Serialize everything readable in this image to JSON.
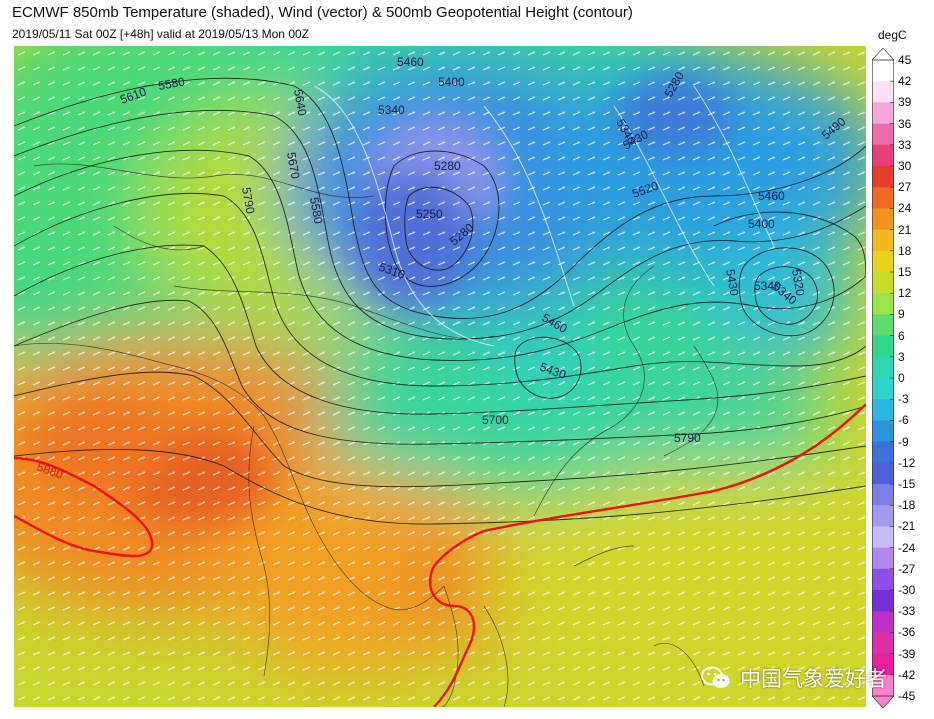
{
  "header": {
    "title": "ECMWF 850mb Temperature (shaded), Wind (vector) & 500mb Geopotential Height (contour)",
    "subtitle": "2019/05/11 Sat 00Z [+48h] valid at 2019/05/13 Mon 00Z"
  },
  "colorbar": {
    "unit": "degC",
    "ticks": [
      45,
      42,
      39,
      36,
      33,
      30,
      27,
      24,
      21,
      18,
      15,
      12,
      9,
      6,
      3,
      0,
      -3,
      -6,
      -9,
      -12,
      -15,
      -18,
      -21,
      -24,
      -27,
      -30,
      -33,
      -36,
      -39,
      -42,
      -45
    ],
    "tick_labels": [
      "45",
      "42",
      "39",
      "36",
      "33",
      "30",
      "27",
      "24",
      "21",
      "18",
      "15",
      "12",
      "9",
      "6",
      "3",
      "0",
      "-3",
      "-6",
      "-9",
      "-12",
      "-15",
      "-18",
      "-21",
      "-24",
      "-27",
      "-30",
      "-33",
      "-36",
      "-39",
      "-42",
      "-45"
    ],
    "colors": [
      "#ffffff",
      "#fde0f4",
      "#f6a6d8",
      "#ef6aa8",
      "#e8407a",
      "#e63c2a",
      "#ef6a22",
      "#f4921e",
      "#f5b81e",
      "#e8d21e",
      "#c8dc2a",
      "#9ce24a",
      "#5edc6a",
      "#32d889",
      "#2ed8b0",
      "#30d2cc",
      "#2bb8e0",
      "#2a94dc",
      "#3a72d8",
      "#5060d8",
      "#7e7fe6",
      "#a29cf0",
      "#c6bcf6",
      "#b088f0",
      "#9050e8",
      "#7430d8",
      "#c030c8",
      "#e030a8",
      "#e8209a",
      "#ff80c8"
    ]
  },
  "contours": {
    "height_labels": [
      "5610",
      "5580",
      "5640",
      "5670",
      "5790",
      "5580",
      "5460",
      "5400",
      "5340",
      "5340",
      "5280",
      "5250",
      "5280",
      "5310",
      "5430",
      "5460",
      "5700",
      "5790",
      "5880",
      "5280",
      "5340",
      "5430",
      "5490",
      "5460",
      "5400",
      "5430",
      "5320",
      "5340",
      "5520"
    ],
    "height_label_color": "#1a1a4a",
    "subtropical_ridge_label": "5880",
    "subtropical_ridge_color": "#ee1111"
  },
  "watermark": {
    "text": "中国气象爱好者",
    "icon": "wechat-icon"
  }
}
